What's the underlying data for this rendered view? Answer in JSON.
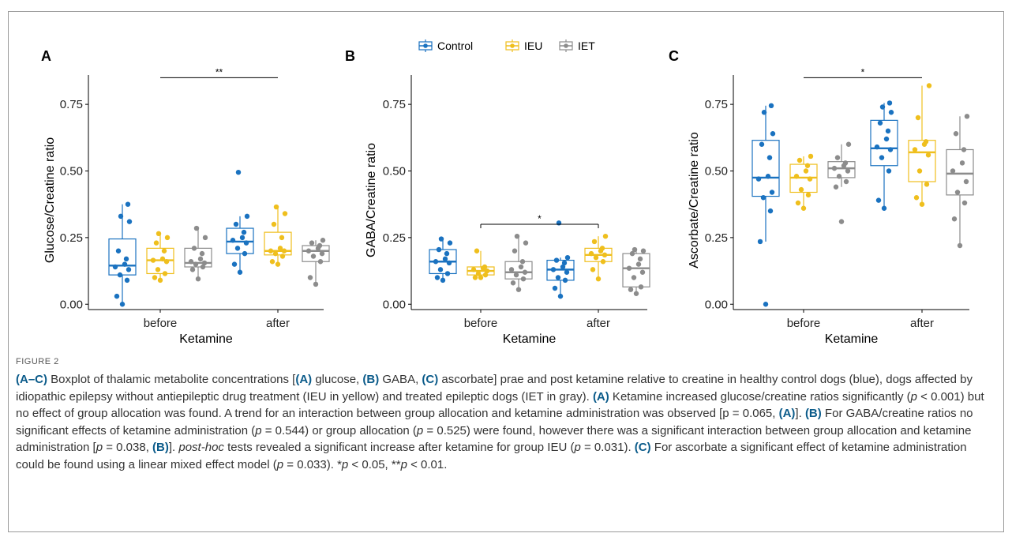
{
  "colors": {
    "Control": "#1a72c0",
    "IEU": "#efbf1d",
    "IET": "#8c8c8c"
  },
  "legend": [
    {
      "group": "Control",
      "label": "Control"
    },
    {
      "group": "IEU",
      "label": "IEU"
    },
    {
      "group": "IET",
      "label": "IET"
    }
  ],
  "chart_data": [
    {
      "type": "box",
      "panel": "A",
      "xlabel": "Ketamine",
      "ylabel": "Glucose/Creatine ratio",
      "ylim": [
        -0.02,
        0.86
      ],
      "yticks": [
        "0.00",
        "0.25",
        "0.50",
        "0.75"
      ],
      "categories": [
        "before",
        "after"
      ],
      "groups": [
        "Control",
        "IEU",
        "IET"
      ],
      "boxes": [
        {
          "category": "before",
          "group": "Control",
          "min": 0.0,
          "q1": 0.11,
          "median": 0.145,
          "q3": 0.245,
          "max": 0.375,
          "points": [
            0.0,
            0.03,
            0.09,
            0.11,
            0.13,
            0.14,
            0.15,
            0.17,
            0.2,
            0.31,
            0.33,
            0.375
          ]
        },
        {
          "category": "before",
          "group": "IEU",
          "min": 0.09,
          "q1": 0.115,
          "median": 0.165,
          "q3": 0.21,
          "max": 0.265,
          "points": [
            0.09,
            0.1,
            0.115,
            0.13,
            0.16,
            0.165,
            0.17,
            0.2,
            0.23,
            0.25,
            0.265
          ]
        },
        {
          "category": "before",
          "group": "IET",
          "min": 0.095,
          "q1": 0.14,
          "median": 0.155,
          "q3": 0.21,
          "max": 0.285,
          "points": [
            0.095,
            0.13,
            0.14,
            0.15,
            0.155,
            0.16,
            0.17,
            0.19,
            0.21,
            0.25,
            0.285
          ]
        },
        {
          "category": "after",
          "group": "Control",
          "min": 0.12,
          "q1": 0.19,
          "median": 0.235,
          "q3": 0.285,
          "max": 0.33,
          "points": [
            0.12,
            0.15,
            0.19,
            0.21,
            0.23,
            0.24,
            0.25,
            0.27,
            0.3,
            0.33,
            0.495
          ]
        },
        {
          "category": "after",
          "group": "IEU",
          "min": 0.15,
          "q1": 0.185,
          "median": 0.2,
          "q3": 0.27,
          "max": 0.365,
          "points": [
            0.15,
            0.16,
            0.18,
            0.19,
            0.2,
            0.2,
            0.21,
            0.25,
            0.3,
            0.34,
            0.365
          ]
        },
        {
          "category": "after",
          "group": "IET",
          "min": 0.075,
          "q1": 0.16,
          "median": 0.2,
          "q3": 0.22,
          "max": 0.24,
          "points": [
            0.075,
            0.1,
            0.16,
            0.18,
            0.19,
            0.2,
            0.21,
            0.22,
            0.23,
            0.24
          ]
        }
      ],
      "significance": {
        "label": "**",
        "y": 0.85,
        "from": "before",
        "to": "after"
      }
    },
    {
      "type": "box",
      "panel": "B",
      "xlabel": "Ketamine",
      "ylabel": "GABA/Creatine ratio",
      "ylim": [
        -0.02,
        0.86
      ],
      "yticks": [
        "0.00",
        "0.25",
        "0.50",
        "0.75"
      ],
      "categories": [
        "before",
        "after"
      ],
      "groups": [
        "Control",
        "IEU",
        "IET"
      ],
      "boxes": [
        {
          "category": "before",
          "group": "Control",
          "min": 0.09,
          "q1": 0.115,
          "median": 0.16,
          "q3": 0.205,
          "max": 0.245,
          "points": [
            0.09,
            0.1,
            0.115,
            0.13,
            0.155,
            0.16,
            0.17,
            0.19,
            0.205,
            0.23,
            0.245
          ]
        },
        {
          "category": "before",
          "group": "IEU",
          "min": 0.1,
          "q1": 0.11,
          "median": 0.125,
          "q3": 0.14,
          "max": 0.2,
          "points": [
            0.1,
            0.1,
            0.11,
            0.115,
            0.125,
            0.13,
            0.135,
            0.14,
            0.2
          ]
        },
        {
          "category": "before",
          "group": "IET",
          "min": 0.055,
          "q1": 0.095,
          "median": 0.12,
          "q3": 0.16,
          "max": 0.255,
          "points": [
            0.055,
            0.08,
            0.095,
            0.11,
            0.12,
            0.13,
            0.14,
            0.16,
            0.2,
            0.23,
            0.255
          ]
        },
        {
          "category": "after",
          "group": "Control",
          "min": 0.03,
          "q1": 0.09,
          "median": 0.13,
          "q3": 0.165,
          "max": 0.175,
          "points": [
            0.03,
            0.06,
            0.09,
            0.1,
            0.12,
            0.13,
            0.14,
            0.155,
            0.165,
            0.175,
            0.305
          ]
        },
        {
          "category": "after",
          "group": "IEU",
          "min": 0.095,
          "q1": 0.16,
          "median": 0.185,
          "q3": 0.21,
          "max": 0.255,
          "points": [
            0.095,
            0.13,
            0.16,
            0.175,
            0.185,
            0.19,
            0.2,
            0.21,
            0.235,
            0.255
          ]
        },
        {
          "category": "after",
          "group": "IET",
          "min": 0.04,
          "q1": 0.065,
          "median": 0.135,
          "q3": 0.19,
          "max": 0.205,
          "points": [
            0.04,
            0.055,
            0.065,
            0.1,
            0.12,
            0.135,
            0.15,
            0.17,
            0.19,
            0.2,
            0.205
          ]
        }
      ],
      "significance": {
        "label": "*",
        "y": 0.3,
        "from": "before",
        "to": "after"
      }
    },
    {
      "type": "box",
      "panel": "C",
      "xlabel": "Ketamine",
      "ylabel": "Ascorbate/Creatine ratio",
      "ylim": [
        -0.02,
        0.86
      ],
      "yticks": [
        "0.00",
        "0.25",
        "0.50",
        "0.75"
      ],
      "categories": [
        "before",
        "after"
      ],
      "groups": [
        "Control",
        "IEU",
        "IET"
      ],
      "boxes": [
        {
          "category": "before",
          "group": "Control",
          "min": 0.235,
          "q1": 0.405,
          "median": 0.475,
          "q3": 0.615,
          "max": 0.745,
          "points": [
            0.0,
            0.235,
            0.35,
            0.4,
            0.42,
            0.47,
            0.48,
            0.55,
            0.6,
            0.64,
            0.72,
            0.745
          ]
        },
        {
          "category": "before",
          "group": "IEU",
          "min": 0.36,
          "q1": 0.42,
          "median": 0.475,
          "q3": 0.525,
          "max": 0.555,
          "points": [
            0.36,
            0.38,
            0.41,
            0.43,
            0.47,
            0.48,
            0.5,
            0.52,
            0.54,
            0.555
          ]
        },
        {
          "category": "before",
          "group": "IET",
          "min": 0.44,
          "q1": 0.475,
          "median": 0.51,
          "q3": 0.535,
          "max": 0.6,
          "points": [
            0.31,
            0.44,
            0.46,
            0.48,
            0.5,
            0.51,
            0.52,
            0.53,
            0.55,
            0.6
          ]
        },
        {
          "category": "after",
          "group": "Control",
          "min": 0.36,
          "q1": 0.52,
          "median": 0.585,
          "q3": 0.69,
          "max": 0.755,
          "points": [
            0.36,
            0.39,
            0.5,
            0.55,
            0.58,
            0.59,
            0.62,
            0.65,
            0.68,
            0.72,
            0.74,
            0.755
          ]
        },
        {
          "category": "after",
          "group": "IEU",
          "min": 0.375,
          "q1": 0.46,
          "median": 0.57,
          "q3": 0.615,
          "max": 0.82,
          "points": [
            0.375,
            0.4,
            0.45,
            0.5,
            0.56,
            0.58,
            0.6,
            0.61,
            0.7,
            0.82
          ]
        },
        {
          "category": "after",
          "group": "IET",
          "min": 0.22,
          "q1": 0.41,
          "median": 0.49,
          "q3": 0.58,
          "max": 0.705,
          "points": [
            0.22,
            0.32,
            0.38,
            0.42,
            0.46,
            0.5,
            0.53,
            0.58,
            0.64,
            0.705
          ]
        }
      ],
      "significance": {
        "label": "*",
        "y": 0.85,
        "from": "before",
        "to": "after"
      }
    }
  ],
  "caption": {
    "figure_label": "FIGURE 2",
    "p1_a": "(A–C)",
    "p1_b": " Boxplot of thalamic metabolite concentrations [",
    "p1_c": "(A)",
    "p1_d": " glucose, ",
    "p1_e": "(B)",
    "p1_f": " GABA, ",
    "p1_g": "(C)",
    "p1_h": " ascorbate] prae and post ketamine relative to creatine in healthy control dogs (blue), dogs affected by idiopathic epilepsy without antiepileptic drug treatment (IEU in yellow) and treated epileptic dogs (IET in gray). ",
    "p2_a": "(A)",
    "p2_b": " Ketamine increased glucose/creatine ratios significantly (",
    "p2_c": "p",
    "p2_d": " < 0.001) but no effect of group allocation was found. A trend for an interaction between group allocation and ketamine administration was observed [p = 0.065, ",
    "p2_e": "(A)",
    "p2_f": "]. ",
    "p3_a": "(B)",
    "p3_b": " For GABA/creatine ratios no significant effects of ketamine administration (",
    "p3_c": "p",
    "p3_d": " = 0.544) or group allocation (",
    "p3_e": "p",
    "p3_f": " = 0.525) were found, however there was a significant interaction between group allocation and ketamine administration [",
    "p3_g": "p",
    "p3_h": " = 0.038, ",
    "p3_i": "(B)",
    "p3_j": "]. ",
    "p4_a": "post-hoc",
    "p4_b": " tests revealed a significant increase after ketamine for group IEU (",
    "p4_c": "p",
    "p4_d": " = 0.031). ",
    "p5_a": "(C)",
    "p5_b": " For ascorbate a significant effect of ketamine administration could be found using a linear mixed effect model (",
    "p5_c": "p",
    "p5_d": " = 0.033). *",
    "p5_e": "p",
    "p5_f": " < 0.05, **",
    "p5_g": "p",
    "p5_h": " < 0.01."
  }
}
